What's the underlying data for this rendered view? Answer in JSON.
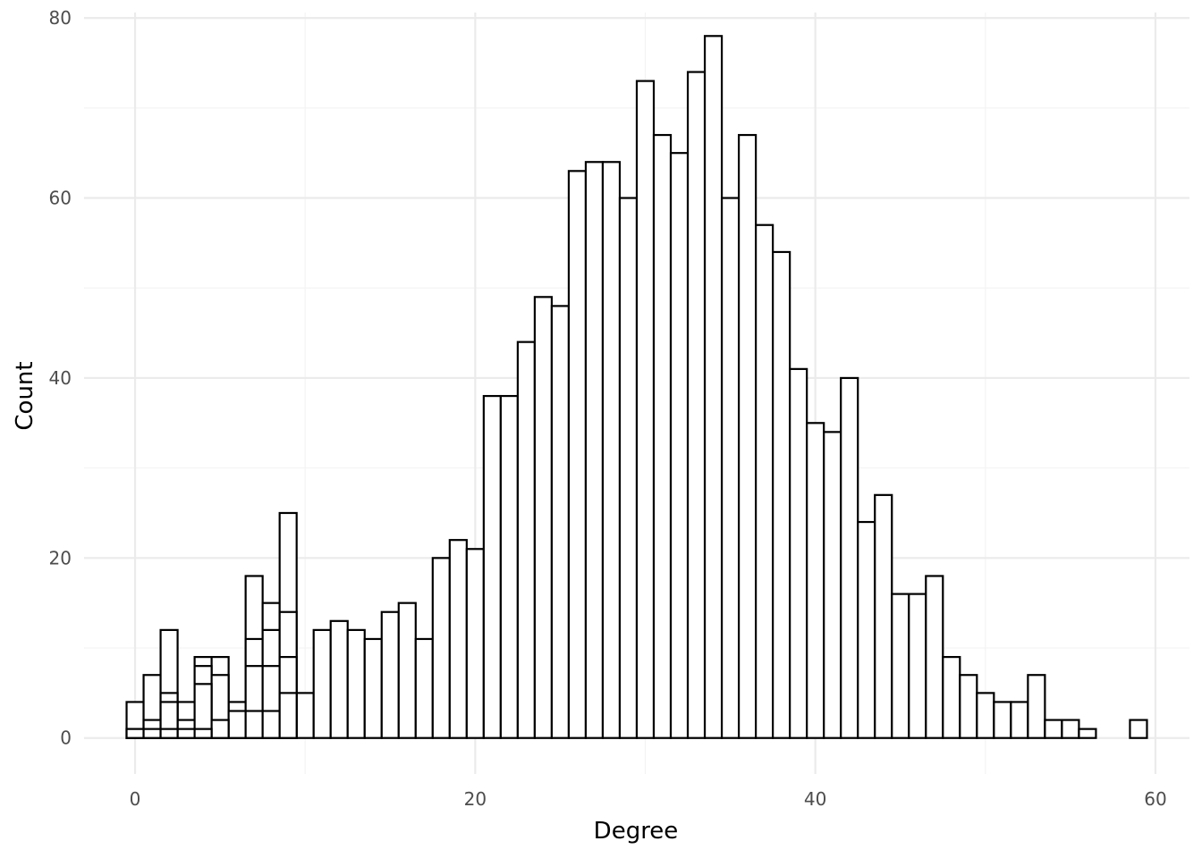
{
  "chart_data": {
    "type": "bar",
    "subtype": "histogram",
    "title": "",
    "xlabel": "Degree",
    "ylabel": "Count",
    "xlim": [
      -3,
      62
    ],
    "ylim": [
      -4,
      82
    ],
    "xticks": [
      0,
      20,
      40,
      60
    ],
    "xticks_minor": [
      10,
      30,
      50
    ],
    "yticks": [
      0,
      20,
      40,
      60,
      80
    ],
    "yticks_minor": [
      10,
      30,
      50,
      70
    ],
    "grid": true,
    "legend": "none",
    "bar_fill": "#ffffff",
    "bar_outline": "#000000",
    "bin_width": 1,
    "series": [
      {
        "values": [
          {
            "x": 0,
            "y": 4
          },
          {
            "x": 1,
            "y": 7
          },
          {
            "x": 2,
            "y": 12
          },
          {
            "x": 3,
            "y": 4
          },
          {
            "x": 4,
            "y": 9
          },
          {
            "x": 5,
            "y": 9
          },
          {
            "x": 6,
            "y": 4
          },
          {
            "x": 7,
            "y": 18
          },
          {
            "x": 8,
            "y": 15
          },
          {
            "x": 9,
            "y": 25
          },
          {
            "x": 10,
            "y": 5
          },
          {
            "x": 11,
            "y": 12
          },
          {
            "x": 12,
            "y": 13
          },
          {
            "x": 13,
            "y": 12
          },
          {
            "x": 14,
            "y": 11
          },
          {
            "x": 15,
            "y": 14
          },
          {
            "x": 16,
            "y": 15
          },
          {
            "x": 17,
            "y": 11
          },
          {
            "x": 18,
            "y": 20
          },
          {
            "x": 19,
            "y": 22
          },
          {
            "x": 20,
            "y": 21
          },
          {
            "x": 21,
            "y": 38
          },
          {
            "x": 22,
            "y": 38
          },
          {
            "x": 23,
            "y": 44
          },
          {
            "x": 24,
            "y": 49
          },
          {
            "x": 25,
            "y": 48
          },
          {
            "x": 26,
            "y": 63
          },
          {
            "x": 27,
            "y": 64
          },
          {
            "x": 28,
            "y": 64
          },
          {
            "x": 29,
            "y": 60
          },
          {
            "x": 30,
            "y": 73
          },
          {
            "x": 31,
            "y": 67
          },
          {
            "x": 32,
            "y": 65
          },
          {
            "x": 33,
            "y": 74
          },
          {
            "x": 34,
            "y": 78
          },
          {
            "x": 35,
            "y": 60
          },
          {
            "x": 36,
            "y": 67
          },
          {
            "x": 37,
            "y": 57
          },
          {
            "x": 38,
            "y": 54
          },
          {
            "x": 39,
            "y": 41
          },
          {
            "x": 40,
            "y": 35
          },
          {
            "x": 41,
            "y": 34
          },
          {
            "x": 42,
            "y": 40
          },
          {
            "x": 43,
            "y": 24
          },
          {
            "x": 44,
            "y": 27
          },
          {
            "x": 45,
            "y": 16
          },
          {
            "x": 46,
            "y": 16
          },
          {
            "x": 47,
            "y": 18
          },
          {
            "x": 48,
            "y": 9
          },
          {
            "x": 49,
            "y": 7
          },
          {
            "x": 50,
            "y": 5
          },
          {
            "x": 51,
            "y": 4
          },
          {
            "x": 52,
            "y": 4
          },
          {
            "x": 53,
            "y": 7
          },
          {
            "x": 54,
            "y": 2
          },
          {
            "x": 55,
            "y": 2
          },
          {
            "x": 56,
            "y": 1
          },
          {
            "x": 59,
            "y": 2
          }
        ]
      },
      {
        "values": [
          {
            "x": 0,
            "y": 1
          },
          {
            "x": 1,
            "y": 2
          },
          {
            "x": 2,
            "y": 5
          },
          {
            "x": 3,
            "y": 2
          },
          {
            "x": 4,
            "y": 8
          },
          {
            "x": 5,
            "y": 7
          },
          {
            "x": 6,
            "y": 3
          },
          {
            "x": 7,
            "y": 11
          },
          {
            "x": 8,
            "y": 12
          },
          {
            "x": 9,
            "y": 14
          }
        ]
      },
      {
        "values": [
          {
            "x": 0,
            "y": 1
          },
          {
            "x": 1,
            "y": 1
          },
          {
            "x": 2,
            "y": 4
          },
          {
            "x": 3,
            "y": 1
          },
          {
            "x": 4,
            "y": 6
          },
          {
            "x": 5,
            "y": 2
          },
          {
            "x": 7,
            "y": 8
          },
          {
            "x": 8,
            "y": 8
          },
          {
            "x": 9,
            "y": 9
          }
        ]
      },
      {
        "values": [
          {
            "x": 2,
            "y": 1
          },
          {
            "x": 4,
            "y": 1
          },
          {
            "x": 7,
            "y": 3
          },
          {
            "x": 8,
            "y": 3
          },
          {
            "x": 9,
            "y": 5
          }
        ]
      }
    ]
  }
}
